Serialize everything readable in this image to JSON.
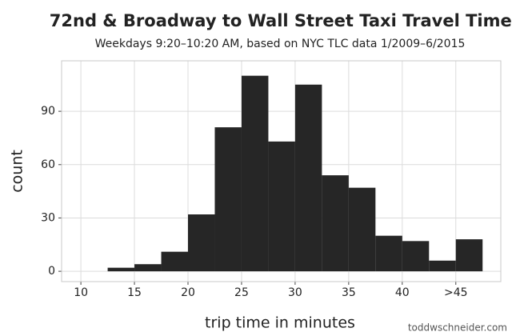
{
  "chart_data": {
    "type": "histogram",
    "title": "72nd & Broadway to Wall Street Taxi Travel Times",
    "subtitle": "Weekdays 9:20–10:20 AM, based on NYC TLC data 1/2009–6/2015",
    "x_label": "trip time in minutes",
    "y_label": "count",
    "credit": "toddwschneider.com",
    "bins": [
      12.5,
      15,
      17.5,
      20,
      22.5,
      25,
      27.5,
      30,
      32.5,
      35,
      37.5,
      40,
      42.5,
      45,
      47.5
    ],
    "counts": [
      2,
      4,
      11,
      32,
      81,
      110,
      73,
      105,
      54,
      47,
      20,
      17,
      6,
      18
    ],
    "color": "#262626",
    "xlim": [
      8.2,
      49.2
    ],
    "xticks": [
      10,
      15,
      20,
      25,
      30,
      35,
      40,
      {
        "value": 45,
        "label": ">45"
      }
    ],
    "ylim": [
      -5.8,
      118.4
    ],
    "yticks": [
      0,
      30,
      60,
      90
    ],
    "grid": true
  }
}
